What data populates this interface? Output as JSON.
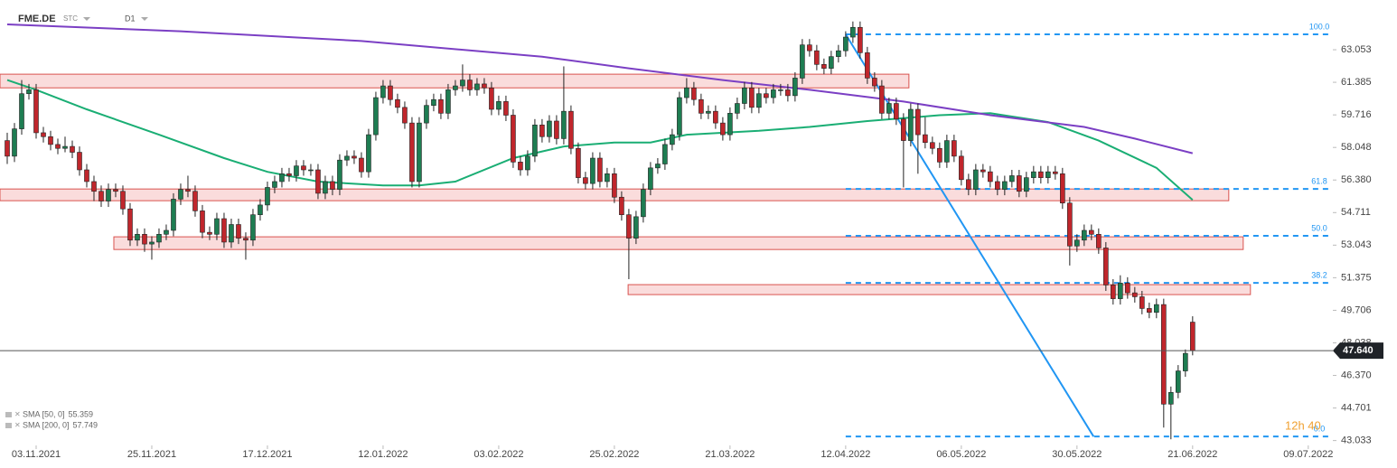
{
  "header": {
    "symbol": "FME.DE",
    "kind": "STC",
    "interval": "D1"
  },
  "chart_data": {
    "type": "candlestick",
    "up_color": "#1e7d52",
    "down_color": "#c0262c",
    "xlim": [
      -1,
      183.4
    ],
    "ylim": [
      42.6,
      65.6
    ],
    "yticks": [
      63.053,
      61.385,
      59.716,
      58.048,
      {
        "value": 56.38,
        "label": "56.380"
      },
      54.711,
      53.043,
      51.375,
      49.706,
      48.038,
      {
        "value": 46.37,
        "label": "46.370"
      },
      44.701,
      43.033
    ],
    "xticks": [
      {
        "value": 4,
        "label": "03.11.2021"
      },
      {
        "value": 20,
        "label": "25.11.2021"
      },
      {
        "value": 36,
        "label": "17.12.2021"
      },
      {
        "value": 52,
        "label": "12.01.2022"
      },
      {
        "value": 68,
        "label": "03.02.2022"
      },
      {
        "value": 84,
        "label": "25.02.2022"
      },
      {
        "value": 100,
        "label": "21.03.2022"
      },
      {
        "value": 116,
        "label": "12.04.2022"
      },
      {
        "value": 132,
        "label": "06.05.2022"
      },
      {
        "value": 148,
        "label": "30.05.2022"
      },
      {
        "value": 164,
        "label": "21.06.2022"
      },
      {
        "value": 180,
        "label": "09.07.2022"
      }
    ],
    "candles": [
      [
        58.4,
        58.8,
        57.2,
        57.6
      ],
      [
        57.6,
        59.3,
        57.3,
        59.0
      ],
      [
        59.0,
        61.5,
        58.7,
        60.8
      ],
      [
        60.8,
        61.3,
        60.5,
        61.0
      ],
      [
        61.0,
        61.3,
        58.5,
        58.8
      ],
      [
        58.8,
        59.1,
        58.3,
        58.6
      ],
      [
        58.6,
        58.9,
        57.9,
        58.2
      ],
      [
        58.2,
        58.5,
        57.7,
        58.0
      ],
      [
        58.0,
        58.6,
        57.8,
        58.1
      ],
      [
        58.1,
        58.4,
        57.5,
        57.8
      ],
      [
        57.8,
        58.1,
        56.6,
        56.9
      ],
      [
        56.9,
        57.2,
        56.0,
        56.3
      ],
      [
        56.3,
        56.6,
        55.3,
        55.8
      ],
      [
        55.8,
        56.1,
        55.0,
        55.3
      ],
      [
        55.3,
        56.2,
        55.0,
        55.9
      ],
      [
        55.9,
        56.2,
        55.5,
        55.8
      ],
      [
        55.8,
        56.1,
        54.6,
        54.9
      ],
      [
        54.9,
        55.2,
        53.0,
        53.3
      ],
      [
        53.3,
        53.9,
        53.0,
        53.6
      ],
      [
        53.6,
        53.9,
        52.7,
        53.1
      ],
      [
        53.1,
        53.5,
        52.3,
        53.2
      ],
      [
        53.2,
        53.9,
        52.9,
        53.6
      ],
      [
        53.6,
        54.1,
        53.3,
        53.8
      ],
      [
        53.8,
        55.7,
        53.5,
        55.4
      ],
      [
        55.4,
        56.2,
        55.1,
        55.9
      ],
      [
        55.9,
        56.6,
        55.5,
        55.8
      ],
      [
        55.8,
        56.1,
        54.5,
        54.8
      ],
      [
        54.8,
        55.1,
        53.4,
        53.7
      ],
      [
        53.7,
        54.0,
        53.3,
        53.6
      ],
      [
        53.6,
        54.7,
        53.3,
        54.4
      ],
      [
        54.4,
        54.7,
        52.9,
        53.2
      ],
      [
        53.2,
        54.4,
        52.9,
        54.1
      ],
      [
        54.1,
        54.4,
        53.1,
        53.4
      ],
      [
        53.4,
        53.7,
        52.3,
        53.3
      ],
      [
        53.3,
        54.9,
        53.0,
        54.6
      ],
      [
        54.6,
        55.4,
        54.3,
        55.1
      ],
      [
        55.1,
        56.3,
        54.8,
        56.0
      ],
      [
        56.0,
        56.6,
        55.7,
        56.3
      ],
      [
        56.3,
        57.0,
        56.0,
        56.7
      ],
      [
        56.7,
        57.0,
        56.3,
        56.6
      ],
      [
        56.6,
        57.4,
        56.3,
        57.1
      ],
      [
        57.1,
        57.4,
        56.6,
        56.9
      ],
      [
        56.9,
        57.2,
        56.6,
        56.9
      ],
      [
        56.9,
        57.2,
        55.4,
        55.7
      ],
      [
        55.7,
        56.6,
        55.4,
        56.3
      ],
      [
        56.3,
        56.6,
        55.6,
        55.9
      ],
      [
        55.9,
        57.7,
        55.6,
        57.4
      ],
      [
        57.4,
        57.9,
        57.1,
        57.6
      ],
      [
        57.6,
        57.9,
        57.2,
        57.5
      ],
      [
        57.5,
        57.8,
        56.5,
        56.8
      ],
      [
        56.8,
        59.0,
        56.5,
        58.7
      ],
      [
        58.7,
        60.9,
        58.4,
        60.6
      ],
      [
        60.6,
        61.5,
        60.3,
        61.2
      ],
      [
        61.2,
        61.5,
        60.2,
        60.5
      ],
      [
        60.5,
        60.8,
        59.8,
        60.1
      ],
      [
        60.1,
        60.4,
        59.0,
        59.3
      ],
      [
        59.3,
        59.6,
        56.0,
        56.3
      ],
      [
        56.3,
        59.6,
        56.0,
        59.3
      ],
      [
        59.3,
        60.5,
        59.0,
        60.2
      ],
      [
        60.2,
        60.8,
        59.9,
        60.5
      ],
      [
        60.5,
        60.8,
        59.5,
        59.8
      ],
      [
        59.8,
        61.3,
        59.5,
        61.0
      ],
      [
        61.0,
        61.5,
        60.7,
        61.2
      ],
      [
        61.2,
        62.3,
        60.9,
        61.5
      ],
      [
        61.5,
        61.8,
        60.7,
        61.0
      ],
      [
        61.0,
        61.6,
        60.7,
        61.3
      ],
      [
        61.3,
        61.6,
        60.8,
        61.1
      ],
      [
        61.1,
        61.4,
        59.7,
        60.0
      ],
      [
        60.0,
        60.7,
        59.7,
        60.4
      ],
      [
        60.4,
        60.7,
        59.4,
        59.7
      ],
      [
        59.7,
        60.0,
        57.0,
        57.3
      ],
      [
        57.3,
        57.6,
        56.6,
        56.9
      ],
      [
        56.9,
        57.9,
        56.6,
        57.6
      ],
      [
        57.6,
        59.5,
        57.3,
        59.2
      ],
      [
        59.2,
        59.5,
        58.3,
        58.6
      ],
      [
        58.6,
        59.7,
        58.3,
        59.4
      ],
      [
        59.4,
        59.7,
        58.2,
        58.5
      ],
      [
        58.5,
        62.2,
        58.2,
        59.9
      ],
      [
        59.9,
        60.2,
        57.7,
        58.0
      ],
      [
        58.0,
        58.3,
        56.2,
        56.5
      ],
      [
        56.5,
        56.8,
        55.9,
        56.2
      ],
      [
        56.2,
        57.8,
        55.9,
        57.5
      ],
      [
        57.5,
        57.8,
        56.0,
        56.3
      ],
      [
        56.3,
        57.0,
        56.0,
        56.7
      ],
      [
        56.7,
        57.0,
        55.2,
        55.5
      ],
      [
        55.5,
        55.8,
        54.3,
        54.6
      ],
      [
        54.6,
        54.9,
        51.3,
        53.4
      ],
      [
        53.4,
        54.8,
        53.1,
        54.5
      ],
      [
        54.5,
        56.2,
        54.2,
        55.9
      ],
      [
        55.9,
        57.3,
        55.6,
        57.0
      ],
      [
        57.0,
        57.5,
        56.7,
        57.2
      ],
      [
        57.2,
        58.5,
        56.9,
        58.2
      ],
      [
        58.2,
        59.0,
        57.9,
        58.7
      ],
      [
        58.7,
        60.9,
        58.4,
        60.6
      ],
      [
        60.6,
        61.6,
        60.3,
        61.1
      ],
      [
        61.1,
        61.4,
        60.2,
        60.5
      ],
      [
        60.5,
        60.8,
        59.5,
        59.8
      ],
      [
        59.8,
        60.2,
        59.5,
        59.9
      ],
      [
        59.9,
        60.2,
        59.0,
        59.3
      ],
      [
        59.3,
        59.6,
        58.4,
        58.7
      ],
      [
        58.7,
        60.1,
        58.4,
        59.8
      ],
      [
        59.8,
        60.6,
        59.5,
        60.3
      ],
      [
        60.3,
        61.4,
        60.0,
        61.1
      ],
      [
        61.1,
        61.4,
        59.8,
        60.1
      ],
      [
        60.1,
        61.1,
        59.8,
        60.8
      ],
      [
        60.8,
        61.1,
        60.3,
        60.6
      ],
      [
        60.6,
        61.3,
        60.3,
        61.0
      ],
      [
        61.0,
        61.3,
        60.7,
        61.0
      ],
      [
        61.0,
        61.3,
        60.4,
        60.7
      ],
      [
        60.7,
        61.9,
        60.4,
        61.6
      ],
      [
        61.6,
        63.6,
        61.3,
        63.3
      ],
      [
        63.3,
        63.6,
        62.7,
        63.0
      ],
      [
        63.0,
        63.3,
        62.0,
        62.3
      ],
      [
        62.3,
        62.6,
        61.8,
        62.1
      ],
      [
        62.1,
        63.0,
        61.8,
        62.7
      ],
      [
        62.7,
        63.3,
        62.4,
        63.0
      ],
      [
        63.0,
        64.0,
        62.7,
        63.7
      ],
      [
        63.7,
        64.5,
        63.4,
        64.2
      ],
      [
        64.2,
        64.5,
        62.6,
        62.9
      ],
      [
        62.9,
        63.2,
        61.3,
        61.6
      ],
      [
        61.6,
        61.9,
        60.9,
        61.2
      ],
      [
        61.2,
        61.5,
        59.5,
        59.8
      ],
      [
        59.8,
        60.6,
        59.5,
        60.3
      ],
      [
        60.3,
        60.6,
        59.2,
        59.5
      ],
      [
        59.5,
        59.8,
        56.0,
        58.4
      ],
      [
        58.4,
        60.3,
        58.1,
        60.0
      ],
      [
        60.0,
        60.3,
        56.7,
        58.7
      ],
      [
        58.7,
        59.6,
        58.0,
        58.3
      ],
      [
        58.3,
        58.6,
        57.7,
        58.0
      ],
      [
        58.0,
        58.3,
        57.0,
        57.3
      ],
      [
        57.3,
        58.7,
        57.0,
        58.4
      ],
      [
        58.4,
        58.7,
        57.3,
        57.6
      ],
      [
        57.6,
        57.9,
        56.1,
        56.4
      ],
      [
        56.4,
        56.7,
        55.6,
        55.9
      ],
      [
        55.9,
        57.2,
        55.6,
        56.9
      ],
      [
        56.9,
        57.2,
        56.5,
        56.8
      ],
      [
        56.8,
        57.1,
        56.0,
        56.3
      ],
      [
        56.3,
        56.6,
        55.6,
        55.9
      ],
      [
        55.9,
        56.6,
        55.6,
        56.3
      ],
      [
        56.3,
        56.9,
        56.0,
        56.6
      ],
      [
        56.6,
        56.9,
        55.5,
        55.8
      ],
      [
        55.8,
        56.8,
        55.5,
        56.5
      ],
      [
        56.5,
        57.1,
        56.2,
        56.8
      ],
      [
        56.8,
        57.1,
        56.2,
        56.5
      ],
      [
        56.5,
        57.1,
        56.2,
        56.8
      ],
      [
        56.8,
        57.1,
        56.4,
        56.7
      ],
      [
        56.7,
        57.0,
        54.9,
        55.2
      ],
      [
        55.2,
        55.5,
        52.0,
        53.0
      ],
      [
        53.0,
        53.6,
        52.7,
        53.3
      ],
      [
        53.3,
        54.1,
        53.0,
        53.8
      ],
      [
        53.8,
        54.1,
        53.3,
        53.6
      ],
      [
        53.6,
        53.9,
        52.6,
        52.9
      ],
      [
        52.9,
        53.2,
        50.7,
        51.0
      ],
      [
        51.0,
        51.3,
        50.0,
        50.3
      ],
      [
        50.3,
        51.5,
        50.0,
        51.1
      ],
      [
        51.1,
        51.4,
        50.3,
        50.6
      ],
      [
        50.6,
        50.9,
        50.1,
        50.4
      ],
      [
        50.4,
        50.7,
        49.5,
        49.8
      ],
      [
        49.8,
        50.1,
        49.3,
        49.6
      ],
      [
        49.6,
        50.3,
        49.3,
        50.0
      ],
      [
        50.0,
        50.3,
        43.7,
        44.9
      ],
      [
        44.9,
        45.8,
        43.1,
        45.5
      ],
      [
        45.5,
        46.9,
        45.2,
        46.6
      ],
      [
        46.6,
        47.7,
        46.3,
        47.5
      ],
      [
        49.1,
        49.4,
        47.4,
        47.64
      ]
    ],
    "series": [
      {
        "name": "SMA [50, 0]",
        "last": 55.359,
        "color": "#1aae74",
        "x": [
          0,
          4,
          11,
          21,
          30,
          36,
          43,
          52,
          57,
          62,
          70,
          77,
          84,
          89,
          94,
          104,
          111,
          119,
          129,
          136,
          144,
          151,
          159,
          164
        ],
        "values": [
          61.5,
          61.0,
          60.0,
          58.7,
          57.5,
          56.8,
          56.3,
          56.1,
          56.1,
          56.3,
          57.5,
          58.1,
          58.3,
          58.3,
          58.7,
          58.9,
          59.1,
          59.4,
          59.7,
          59.8,
          59.35,
          58.4,
          57.0,
          55.359
        ]
      },
      {
        "name": "SMA [200, 0]",
        "last": 57.749,
        "color": "#7b3fc4",
        "x": [
          0,
          24,
          49,
          74,
          86,
          99,
          111,
          124,
          136,
          149,
          156,
          164
        ],
        "values": [
          64.35,
          64.0,
          63.5,
          62.7,
          62.1,
          61.5,
          61.0,
          60.4,
          59.7,
          59.1,
          58.5,
          57.749
        ]
      }
    ],
    "zones": [
      {
        "x": [
          -1,
          124.75
        ],
        "y": [
          61.1,
          61.8
        ]
      },
      {
        "x": [
          -1,
          169
        ],
        "y": [
          55.32,
          55.92
        ]
      },
      {
        "x": [
          14.75,
          171
        ],
        "y": [
          52.82,
          53.47
        ]
      },
      {
        "x": [
          85.9,
          172
        ],
        "y": [
          50.51,
          51.02
        ]
      }
    ],
    "fib": {
      "color": "#2196f3",
      "x": [
        116,
        183
      ],
      "levels": [
        {
          "label": "100.0",
          "price": 63.84
        },
        {
          "label": "61.8",
          "price": 55.92
        },
        {
          "label": "50.0",
          "price": 53.52
        },
        {
          "label": "38.2",
          "price": 51.11
        },
        {
          "label": "0.0",
          "price": 43.24
        }
      ]
    },
    "trendline": {
      "color": "#2196f3",
      "x": [
        116,
        150.3
      ],
      "y": [
        63.84,
        43.24
      ]
    },
    "last_price": {
      "value": 47.64,
      "label": "47.640"
    },
    "countdown": "12h 40"
  }
}
